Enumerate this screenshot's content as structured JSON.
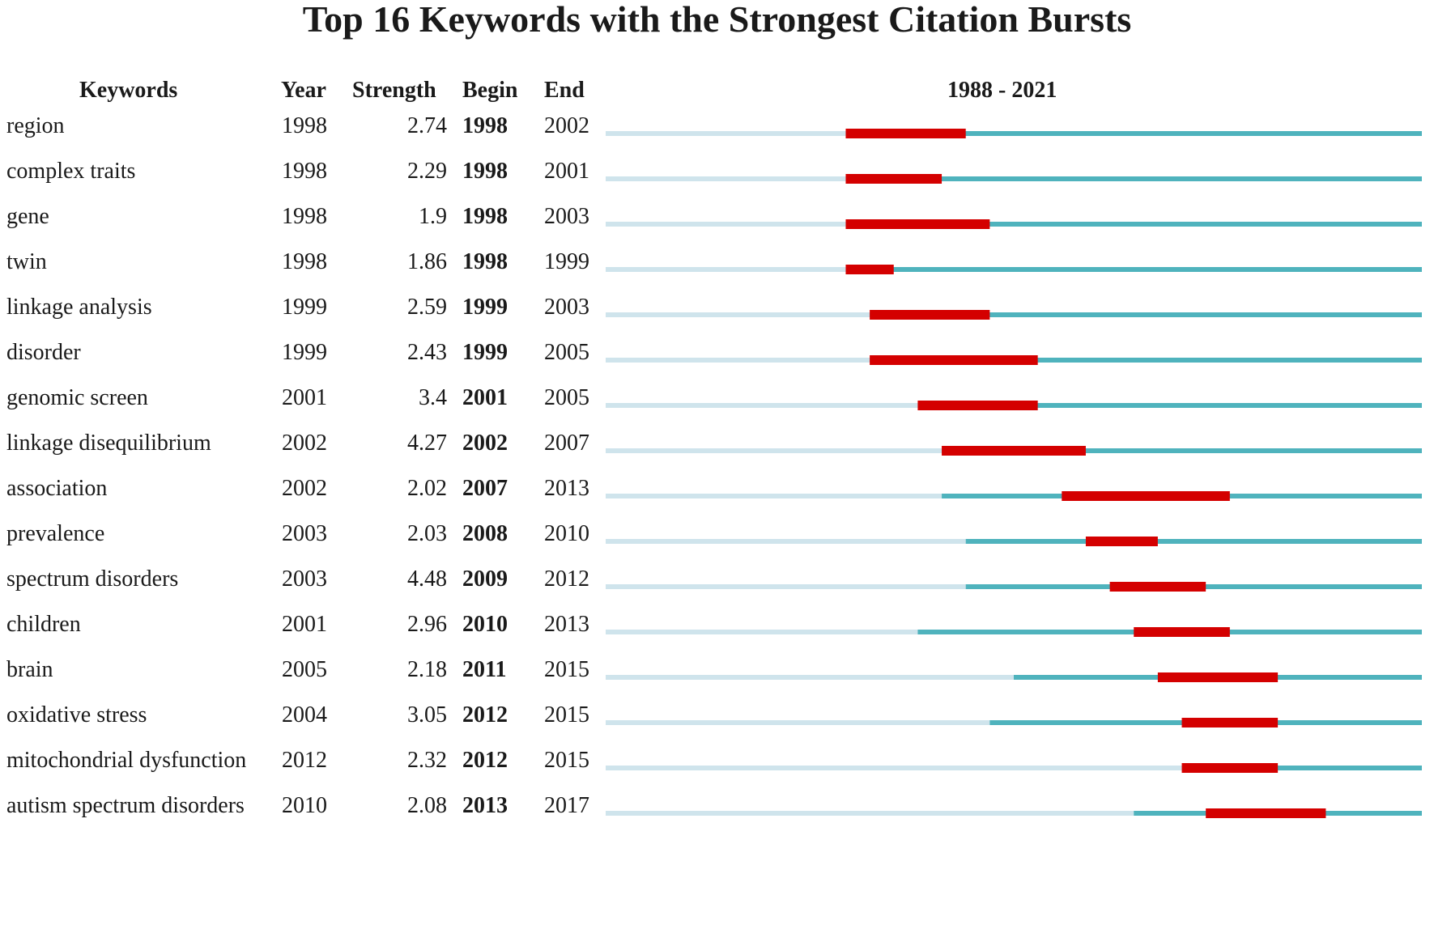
{
  "chart_data": {
    "type": "table",
    "title": "Top 16 Keywords with the Strongest Citation Bursts",
    "columns": [
      "Keywords",
      "Year",
      "Strength",
      "Begin",
      "End"
    ],
    "timeline_label": "1988 - 2021",
    "range": [
      1988,
      2021
    ],
    "colors": {
      "burst": "#d40000",
      "active": "#4fb3bd",
      "inactive": "#cfe4ec"
    },
    "rows": [
      {
        "keyword": "region",
        "year": "1998",
        "strength": "2.74",
        "begin": "1998",
        "end": "2002"
      },
      {
        "keyword": "complex traits",
        "year": "1998",
        "strength": "2.29",
        "begin": "1998",
        "end": "2001"
      },
      {
        "keyword": "gene",
        "year": "1998",
        "strength": "1.9",
        "begin": "1998",
        "end": "2003"
      },
      {
        "keyword": "twin",
        "year": "1998",
        "strength": "1.86",
        "begin": "1998",
        "end": "1999"
      },
      {
        "keyword": "linkage analysis",
        "year": "1999",
        "strength": "2.59",
        "begin": "1999",
        "end": "2003"
      },
      {
        "keyword": "disorder",
        "year": "1999",
        "strength": "2.43",
        "begin": "1999",
        "end": "2005"
      },
      {
        "keyword": "genomic screen",
        "year": "2001",
        "strength": "3.4",
        "begin": "2001",
        "end": "2005"
      },
      {
        "keyword": "linkage disequilibrium",
        "year": "2002",
        "strength": "4.27",
        "begin": "2002",
        "end": "2007"
      },
      {
        "keyword": "association",
        "year": "2002",
        "strength": "2.02",
        "begin": "2007",
        "end": "2013"
      },
      {
        "keyword": "prevalence",
        "year": "2003",
        "strength": "2.03",
        "begin": "2008",
        "end": "2010"
      },
      {
        "keyword": "spectrum disorders",
        "year": "2003",
        "strength": "4.48",
        "begin": "2009",
        "end": "2012"
      },
      {
        "keyword": "children",
        "year": "2001",
        "strength": "2.96",
        "begin": "2010",
        "end": "2013"
      },
      {
        "keyword": "brain",
        "year": "2005",
        "strength": "2.18",
        "begin": "2011",
        "end": "2015"
      },
      {
        "keyword": "oxidative stress",
        "year": "2004",
        "strength": "3.05",
        "begin": "2012",
        "end": "2015"
      },
      {
        "keyword": "mitochondrial dysfunction",
        "year": "2012",
        "strength": "2.32",
        "begin": "2012",
        "end": "2015"
      },
      {
        "keyword": "autism spectrum disorders",
        "year": "2010",
        "strength": "2.08",
        "begin": "2013",
        "end": "2017"
      }
    ]
  }
}
